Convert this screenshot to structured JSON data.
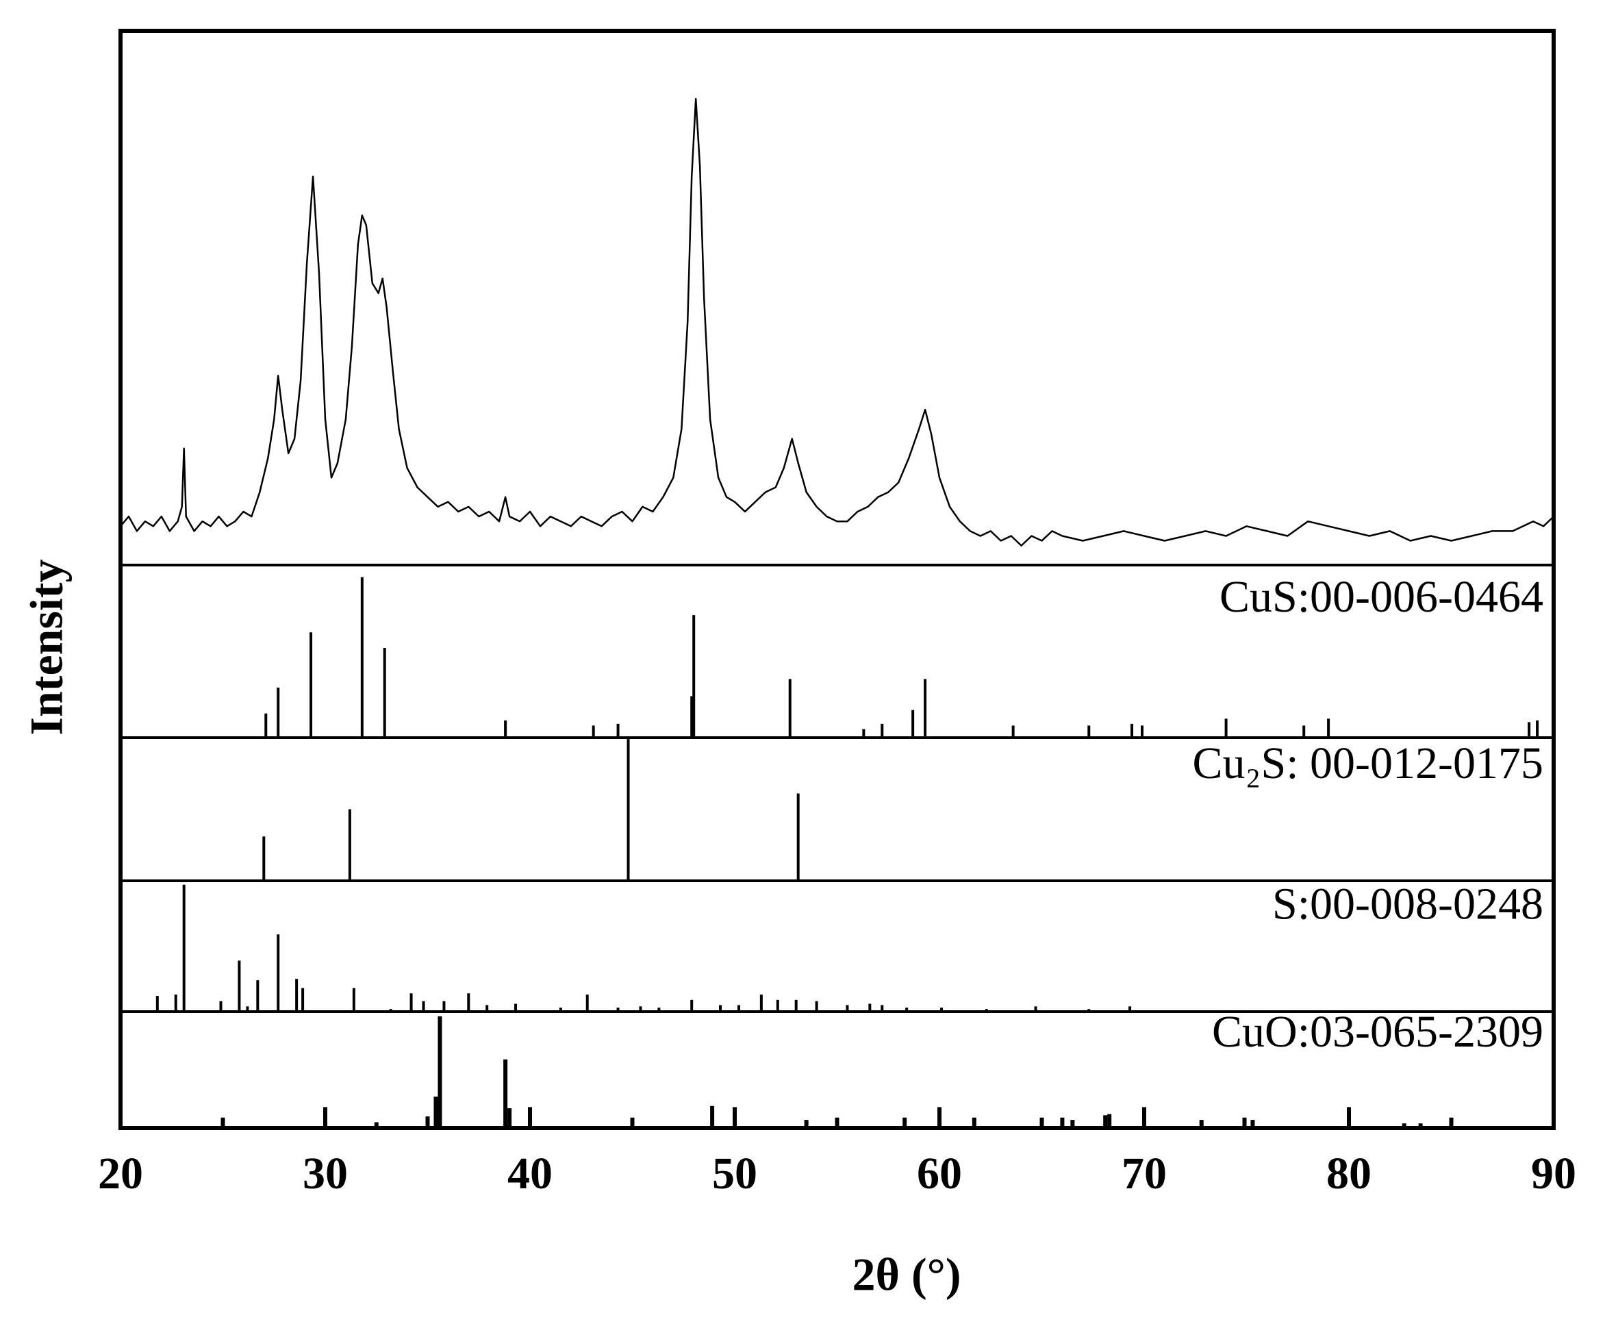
{
  "chart_data": [
    {
      "type": "line",
      "xlabel": "2θ (°)",
      "ylabel": "Intensity",
      "color": "#000000",
      "xlim": [
        20,
        90
      ],
      "xticks": [
        20,
        30,
        40,
        50,
        60,
        70,
        80,
        90
      ],
      "ylim": [
        0,
        110
      ],
      "x": [
        20,
        20.4,
        20.8,
        21.2,
        21.6,
        22,
        22.4,
        22.8,
        23.0,
        23.1,
        23.2,
        23.6,
        24,
        24.4,
        24.8,
        25.2,
        25.6,
        26,
        26.4,
        26.8,
        27.2,
        27.5,
        27.7,
        27.9,
        28.2,
        28.5,
        28.8,
        29.1,
        29.4,
        29.7,
        30,
        30.3,
        30.6,
        31,
        31.3,
        31.6,
        31.8,
        32.0,
        32.3,
        32.6,
        32.8,
        33.0,
        33.3,
        33.6,
        34,
        34.5,
        35,
        35.5,
        36,
        36.5,
        37,
        37.5,
        38,
        38.5,
        38.8,
        39,
        39.5,
        40,
        40.5,
        41,
        41.5,
        42,
        42.5,
        43,
        43.5,
        44,
        44.5,
        45,
        45.5,
        46,
        46.5,
        47,
        47.4,
        47.7,
        47.9,
        48.1,
        48.3,
        48.5,
        48.8,
        49.2,
        49.6,
        50,
        50.5,
        51,
        51.5,
        52,
        52.4,
        52.8,
        53.1,
        53.5,
        54,
        54.5,
        55,
        55.5,
        56,
        56.5,
        57,
        57.5,
        58,
        58.5,
        59,
        59.3,
        59.6,
        60,
        60.5,
        61,
        61.5,
        62,
        62.5,
        63,
        63.5,
        64,
        64.5,
        65,
        65.5,
        66,
        67,
        68,
        69,
        70,
        71,
        72,
        73,
        74,
        75,
        76,
        77,
        78,
        79,
        80,
        81,
        82,
        83,
        84,
        85,
        86,
        87,
        88,
        89,
        89.5,
        90
      ],
      "values": [
        8,
        10,
        7,
        9,
        8,
        10,
        7,
        9,
        12,
        24,
        10,
        7,
        9,
        8,
        10,
        8,
        9,
        11,
        10,
        15,
        22,
        30,
        39,
        32,
        23,
        26,
        38,
        62,
        80,
        60,
        30,
        18,
        21,
        30,
        45,
        66,
        72,
        70,
        58,
        56,
        59,
        53,
        40,
        28,
        20,
        16,
        14,
        12,
        13,
        11,
        12,
        10,
        11,
        9,
        14,
        10,
        9,
        11,
        8,
        10,
        9,
        8,
        10,
        9,
        8,
        10,
        11,
        9,
        12,
        11,
        14,
        18,
        28,
        50,
        80,
        96,
        82,
        55,
        30,
        18,
        14,
        13,
        11,
        13,
        15,
        16,
        20,
        26,
        21,
        15,
        12,
        10,
        9,
        9,
        11,
        12,
        14,
        15,
        17,
        22,
        28,
        32,
        27,
        18,
        12,
        9,
        7,
        6,
        7,
        5,
        6,
        4,
        6,
        5,
        7,
        6,
        5,
        6,
        7,
        6,
        5,
        6,
        7,
        6,
        8,
        7,
        6,
        9,
        8,
        7,
        6,
        7,
        5,
        6,
        5,
        6,
        7,
        7,
        9,
        8,
        10
      ]
    },
    {
      "type": "stem",
      "title": "CuS:00-006-0464",
      "xlim": [
        20,
        90
      ],
      "ylim": [
        0,
        100
      ],
      "x": [
        27.1,
        27.7,
        29.3,
        31.8,
        32.9,
        38.8,
        43.1,
        44.3,
        47.9,
        48.0,
        52.7,
        56.3,
        57.2,
        58.7,
        59.3,
        63.6,
        67.3,
        69.4,
        69.9,
        74.0,
        77.8,
        79.0,
        88.8,
        89.2
      ],
      "values": [
        14,
        29,
        61,
        93,
        52,
        10,
        7,
        8,
        24,
        71,
        34,
        5,
        8,
        16,
        34,
        7,
        7,
        8,
        7,
        11,
        7,
        11,
        9,
        10
      ]
    },
    {
      "type": "stem",
      "title": "Cu₂S: 00-012-0175",
      "xlim": [
        20,
        90
      ],
      "ylim": [
        0,
        100
      ],
      "x": [
        27.0,
        31.2,
        44.8,
        53.1
      ],
      "values": [
        31,
        50,
        99,
        61
      ]
    },
    {
      "type": "stem",
      "title": "S:00-008-0248",
      "xlim": [
        20,
        90
      ],
      "ylim": [
        0,
        100
      ],
      "x": [
        21.8,
        22.7,
        23.1,
        24.9,
        25.8,
        26.2,
        26.7,
        27.7,
        28.6,
        28.9,
        31.4,
        33.2,
        34.2,
        34.8,
        35.8,
        37.0,
        37.9,
        39.3,
        41.5,
        42.8,
        44.3,
        45.4,
        46.3,
        47.9,
        49.3,
        50.2,
        51.3,
        52.1,
        53.0,
        54.0,
        55.5,
        56.6,
        57.2,
        58.4,
        60.1,
        62.3,
        64.7,
        67.3,
        69.3
      ],
      "values": [
        12,
        13,
        97,
        8,
        39,
        4,
        24,
        59,
        25,
        18,
        18,
        2,
        14,
        8,
        8,
        14,
        5,
        6,
        3,
        13,
        3,
        4,
        3,
        9,
        5,
        5,
        13,
        9,
        9,
        8,
        5,
        6,
        5,
        3,
        3,
        2,
        4,
        2,
        4
      ]
    },
    {
      "type": "stem",
      "title": "CuO:03-065-2309",
      "xlim": [
        20,
        90
      ],
      "ylim": [
        0,
        100
      ],
      "x": [
        25.0,
        30.0,
        32.5,
        35.0,
        35.4,
        35.6,
        38.8,
        39.0,
        40.0,
        45.0,
        48.9,
        50.0,
        53.5,
        55.0,
        58.3,
        60.0,
        61.7,
        65.0,
        66.0,
        66.5,
        68.1,
        68.3,
        70.0,
        72.8,
        74.9,
        75.3,
        80.0,
        82.7,
        83.5,
        85.0
      ],
      "values": [
        9,
        18,
        5,
        10,
        27,
        96,
        59,
        17,
        18,
        9,
        19,
        18,
        7,
        9,
        9,
        18,
        9,
        9,
        9,
        7,
        11,
        12,
        18,
        7,
        9,
        7,
        18,
        4,
        4,
        9
      ]
    }
  ]
}
